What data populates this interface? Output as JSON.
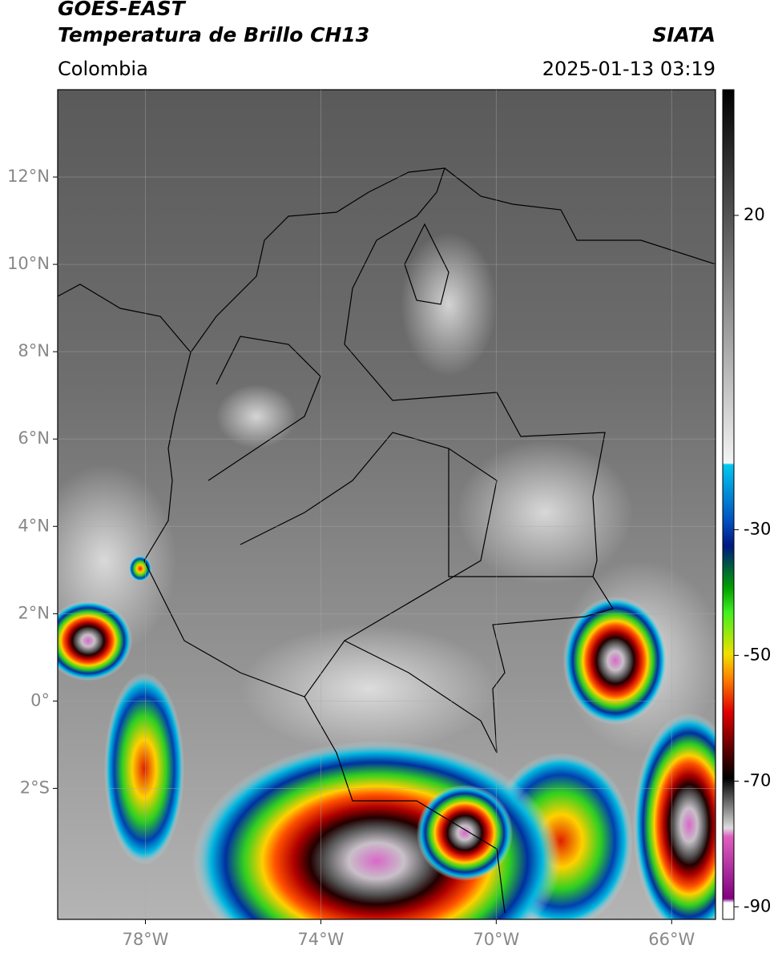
{
  "header": {
    "satellite": "GOES-EAST",
    "product": "Temperatura de Brillo CH13",
    "source": "SIATA",
    "region": "Colombia",
    "datetime": "2025-01-13 03:19"
  },
  "map": {
    "lonlim": [
      -80,
      -65
    ],
    "latlim": [
      -5,
      14
    ],
    "lon_ticks": [
      {
        "value": -78,
        "label": "78°W"
      },
      {
        "value": -74,
        "label": "74°W"
      },
      {
        "value": -70,
        "label": "70°W"
      },
      {
        "value": -66,
        "label": "66°W"
      }
    ],
    "lat_ticks": [
      {
        "value": 12,
        "label": "12°N"
      },
      {
        "value": 10,
        "label": "10°N"
      },
      {
        "value": 8,
        "label": "8°N"
      },
      {
        "value": 6,
        "label": "6°N"
      },
      {
        "value": 4,
        "label": "4°N"
      },
      {
        "value": 2,
        "label": "2°N"
      },
      {
        "value": 0,
        "label": "0°"
      },
      {
        "value": -2,
        "label": "2°S"
      }
    ],
    "grid": true
  },
  "colorbar": {
    "clim": [
      -92,
      40
    ],
    "ticks": [
      20,
      -30,
      -50,
      -70,
      -90
    ]
  }
}
